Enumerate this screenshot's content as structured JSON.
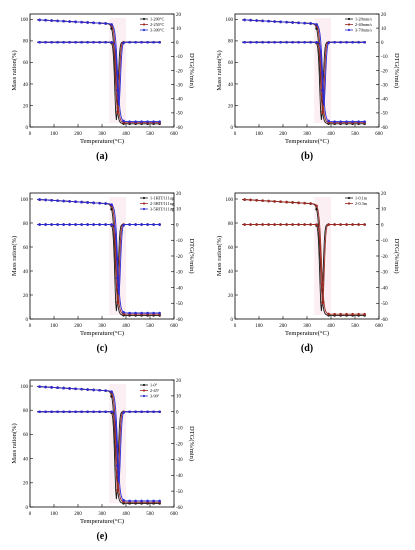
{
  "colors": {
    "black_series": "#1a1a1a",
    "red_series": "#9e2a22",
    "blue_series": "#2b2bd6",
    "axis": "#000000",
    "pink_band": "#e9a6c0"
  },
  "chart_data": [
    {
      "type": "line",
      "panel_label": "(a)",
      "xlabel": "Temperature(°C)",
      "ylabel_left": "Mass ration(%)",
      "ylabel_right": "DTG(%/min)",
      "xlim": [
        0,
        600
      ],
      "ylim_left": [
        0,
        105
      ],
      "ylim_right": [
        -60,
        20
      ],
      "x_ticks": [
        "0",
        "100",
        "200",
        "300",
        "400",
        "500",
        "600"
      ],
      "y_left_ticks": [
        "0",
        "20",
        "40",
        "60",
        "80",
        "100"
      ],
      "y_right_ticks": [
        "-60",
        "-50",
        "-40",
        "-30",
        "-20",
        "-10",
        "0",
        "10",
        "20"
      ],
      "legend_position": "top-right",
      "series": [
        {
          "name": "1-200°C",
          "color": "black_series",
          "tga_onset": 340,
          "tga_end": 370,
          "tga_residue": 3,
          "dtg_peak_x": 360,
          "dtg_peak_y": -55
        },
        {
          "name": "2-250°C",
          "color": "red_series",
          "tga_onset": 345,
          "tga_end": 375,
          "tga_residue": 4,
          "dtg_peak_x": 365,
          "dtg_peak_y": -50
        },
        {
          "name": "3-300°C",
          "color": "blue_series",
          "tga_onset": 350,
          "tga_end": 380,
          "tga_residue": 5,
          "dtg_peak_x": 370,
          "dtg_peak_y": -45
        }
      ]
    },
    {
      "type": "line",
      "panel_label": "(b)",
      "xlabel": "Temperature(°C)",
      "ylabel_left": "Mass ration(%)",
      "ylabel_right": "DTG(%/min)",
      "xlim": [
        0,
        600
      ],
      "ylim_left": [
        0,
        105
      ],
      "ylim_right": [
        -60,
        20
      ],
      "x_ticks": [
        "0",
        "100",
        "200",
        "300",
        "400",
        "500",
        "600"
      ],
      "y_left_ticks": [
        "0",
        "20",
        "40",
        "60",
        "80",
        "100"
      ],
      "y_right_ticks": [
        "-60",
        "-50",
        "-40",
        "-30",
        "-20",
        "-10",
        "0",
        "10",
        "20"
      ],
      "legend_position": "top-right",
      "series": [
        {
          "name": "1-20mm/s",
          "color": "black_series",
          "tga_onset": 340,
          "tga_end": 370,
          "tga_residue": 3,
          "dtg_peak_x": 360,
          "dtg_peak_y": -55
        },
        {
          "name": "2-40mm/s",
          "color": "red_series",
          "tga_onset": 345,
          "tga_end": 375,
          "tga_residue": 4,
          "dtg_peak_x": 365,
          "dtg_peak_y": -50
        },
        {
          "name": "3-70mm/s",
          "color": "blue_series",
          "tga_onset": 350,
          "tga_end": 380,
          "tga_residue": 5,
          "dtg_peak_x": 370,
          "dtg_peak_y": -45
        }
      ]
    },
    {
      "type": "line",
      "panel_label": "(c)",
      "xlabel": "Temperature(°C)",
      "ylabel_left": "Mass ration(%)",
      "ylabel_right": "DTG(%/min)",
      "xlim": [
        0,
        600
      ],
      "ylim_left": [
        0,
        105
      ],
      "ylim_right": [
        -60,
        20
      ],
      "x_ticks": [
        "0",
        "100",
        "200",
        "300",
        "400",
        "500",
        "600"
      ],
      "y_left_ticks": [
        "0",
        "20",
        "40",
        "60",
        "80",
        "100"
      ],
      "y_right_ticks": [
        "-60",
        "-50",
        "-40",
        "-30",
        "-20",
        "-10",
        "0",
        "10",
        "20"
      ],
      "legend_position": "top-right",
      "series": [
        {
          "name": "1-1HIT/111ug",
          "color": "black_series",
          "tga_onset": 340,
          "tga_end": 370,
          "tga_residue": 3,
          "dtg_peak_x": 360,
          "dtg_peak_y": -55
        },
        {
          "name": "2-3HIT/111ug",
          "color": "red_series",
          "tga_onset": 345,
          "tga_end": 375,
          "tga_residue": 4,
          "dtg_peak_x": 365,
          "dtg_peak_y": -50
        },
        {
          "name": "3-5HIT/111ug",
          "color": "blue_series",
          "tga_onset": 350,
          "tga_end": 380,
          "tga_residue": 5,
          "dtg_peak_x": 370,
          "dtg_peak_y": -45
        }
      ]
    },
    {
      "type": "line",
      "panel_label": "(d)",
      "xlabel": "Temperature(°C)",
      "ylabel_left": "Mass ration(%)",
      "ylabel_right": "DTG(%/min)",
      "xlim": [
        0,
        600
      ],
      "ylim_left": [
        0,
        105
      ],
      "ylim_right": [
        -60,
        20
      ],
      "x_ticks": [
        "0",
        "100",
        "200",
        "300",
        "400",
        "500",
        "600"
      ],
      "y_left_ticks": [
        "0",
        "20",
        "40",
        "60",
        "80",
        "100"
      ],
      "y_right_ticks": [
        "-60",
        "-50",
        "-40",
        "-30",
        "-20",
        "-10",
        "0",
        "10",
        "20"
      ],
      "legend_position": "top-right",
      "series": [
        {
          "name": "1-0.1m",
          "color": "black_series",
          "tga_onset": 340,
          "tga_end": 370,
          "tga_residue": 3,
          "dtg_peak_x": 360,
          "dtg_peak_y": -55
        },
        {
          "name": "2-0.3m",
          "color": "red_series",
          "tga_onset": 345,
          "tga_end": 375,
          "tga_residue": 4,
          "dtg_peak_x": 365,
          "dtg_peak_y": -50
        }
      ]
    },
    {
      "type": "line",
      "panel_label": "(e)",
      "xlabel": "Temperature(°C)",
      "ylabel_left": "Mass ration(%)",
      "ylabel_right": "DTG(%/min)",
      "xlim": [
        0,
        600
      ],
      "ylim_left": [
        0,
        105
      ],
      "ylim_right": [
        -60,
        20
      ],
      "x_ticks": [
        "0",
        "100",
        "200",
        "300",
        "400",
        "500",
        "600"
      ],
      "y_left_ticks": [
        "0",
        "20",
        "40",
        "60",
        "80",
        "100"
      ],
      "y_right_ticks": [
        "-60",
        "-50",
        "-40",
        "-30",
        "-20",
        "-10",
        "0",
        "10",
        "20"
      ],
      "legend_position": "top-right",
      "series": [
        {
          "name": "1-0°",
          "color": "black_series",
          "tga_onset": 340,
          "tga_end": 370,
          "tga_residue": 3,
          "dtg_peak_x": 360,
          "dtg_peak_y": -55
        },
        {
          "name": "2-45°",
          "color": "red_series",
          "tga_onset": 345,
          "tga_end": 375,
          "tga_residue": 4,
          "dtg_peak_x": 365,
          "dtg_peak_y": -50
        },
        {
          "name": "3-90°",
          "color": "blue_series",
          "tga_onset": 350,
          "tga_end": 380,
          "tga_residue": 5,
          "dtg_peak_x": 370,
          "dtg_peak_y": -45
        }
      ]
    }
  ]
}
